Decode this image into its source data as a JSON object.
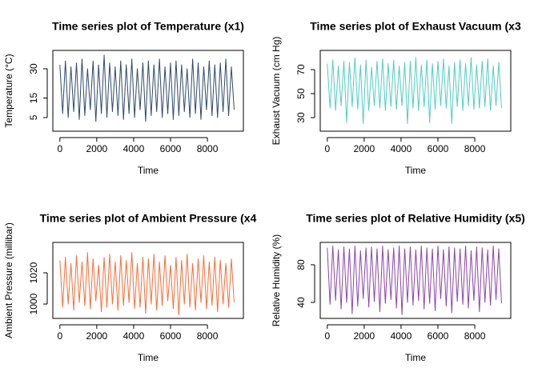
{
  "chart_data": [
    {
      "type": "line",
      "title": "Time series plot of Temperature (x1)",
      "xlabel": "Time",
      "ylabel": "Temperature (°C)",
      "color": "#2e4a6b",
      "x": [
        0,
        150,
        300,
        450,
        600,
        750,
        900,
        1050,
        1200,
        1350,
        1500,
        1650,
        1800,
        1950,
        2100,
        2250,
        2400,
        2550,
        2700,
        2850,
        3000,
        3150,
        3300,
        3450,
        3600,
        3750,
        3900,
        4050,
        4200,
        4350,
        4500,
        4650,
        4800,
        4950,
        5100,
        5250,
        5400,
        5550,
        5700,
        5850,
        6000,
        6150,
        6300,
        6450,
        6600,
        6750,
        6900,
        7050,
        7200,
        7350,
        7500,
        7650,
        7800,
        7950,
        8100,
        8250,
        8400,
        8550,
        8700,
        8850,
        9000,
        9150,
        9300,
        9450
      ],
      "values": [
        32,
        7,
        34,
        5,
        31,
        8,
        33,
        4,
        35,
        6,
        30,
        9,
        34,
        3,
        32,
        7,
        37,
        5,
        33,
        8,
        31,
        6,
        34,
        4,
        32,
        7,
        35,
        5,
        30,
        9,
        33,
        3,
        34,
        6,
        32,
        8,
        35,
        5,
        31,
        7,
        33,
        4,
        34,
        6,
        32,
        8,
        30,
        5,
        35,
        7,
        33,
        4,
        31,
        9,
        34,
        6,
        32,
        5,
        33,
        8,
        35,
        6,
        31,
        9
      ],
      "xlim": [
        -382,
        9951
      ],
      "xticks": [
        0,
        2000,
        4000,
        6000,
        8000
      ],
      "ylim": [
        -2,
        39.4
      ],
      "yticks": [
        5,
        15,
        30
      ]
    },
    {
      "type": "line",
      "title": "Time series plot of Exhaust Vacuum (x3",
      "xlabel": "Time",
      "ylabel": "Exhaust Vacuum (cm Hg)",
      "color": "#4ecdc4",
      "x": [
        0,
        150,
        300,
        450,
        600,
        750,
        900,
        1050,
        1200,
        1350,
        1500,
        1650,
        1800,
        1950,
        2100,
        2250,
        2400,
        2550,
        2700,
        2850,
        3000,
        3150,
        3300,
        3450,
        3600,
        3750,
        3900,
        4050,
        4200,
        4350,
        4500,
        4650,
        4800,
        4950,
        5100,
        5250,
        5400,
        5550,
        5700,
        5850,
        6000,
        6150,
        6300,
        6450,
        6600,
        6750,
        6900,
        7050,
        7200,
        7350,
        7500,
        7650,
        7800,
        7950,
        8100,
        8250,
        8400,
        8550,
        8700,
        8850,
        9000,
        9150,
        9300,
        9450
      ],
      "values": [
        75,
        38,
        78,
        36,
        73,
        40,
        77,
        26,
        76,
        39,
        80,
        37,
        74,
        25,
        78,
        36,
        72,
        40,
        77,
        38,
        79,
        36,
        75,
        39,
        78,
        37,
        73,
        40,
        76,
        25,
        77,
        38,
        80,
        36,
        74,
        39,
        78,
        26,
        75,
        37,
        77,
        40,
        79,
        38,
        73,
        25,
        76,
        39,
        78,
        36,
        75,
        40,
        80,
        37,
        74,
        38,
        77,
        39,
        79,
        36,
        73,
        40,
        76,
        38
      ],
      "xlim": [
        -382,
        9951
      ],
      "xticks": [
        0,
        2000,
        4000,
        6000,
        8000
      ],
      "ylim": [
        18.7,
        86
      ],
      "yticks": [
        30,
        50,
        70
      ]
    },
    {
      "type": "line",
      "title": "Time series plot of Ambient Pressure (x4",
      "xlabel": "Time",
      "ylabel": "Ambient Pressure (millibar)",
      "color": "#ff6b35",
      "x": [
        0,
        150,
        300,
        450,
        600,
        750,
        900,
        1050,
        1200,
        1350,
        1500,
        1650,
        1800,
        1950,
        2100,
        2250,
        2400,
        2550,
        2700,
        2850,
        3000,
        3150,
        3300,
        3450,
        3600,
        3750,
        3900,
        4050,
        4200,
        4350,
        4500,
        4650,
        4800,
        4950,
        5100,
        5250,
        5400,
        5550,
        5700,
        5850,
        6000,
        6150,
        6300,
        6450,
        6600,
        6750,
        6900,
        7050,
        7200,
        7350,
        7500,
        7650,
        7800,
        7950,
        8100,
        8250,
        8400,
        8550,
        8700,
        8850,
        9000,
        9150,
        9300,
        9450
      ],
      "values": [
        1028,
        998,
        1030,
        1000,
        1026,
        996,
        1031,
        1001,
        1027,
        999,
        1033,
        997,
        1029,
        1002,
        1025,
        995,
        1030,
        998,
        1032,
        1000,
        1027,
        996,
        1031,
        999,
        1028,
        1001,
        1033,
        997,
        1026,
        998,
        1030,
        994,
        1029,
        1000,
        1032,
        996,
        1027,
        999,
        1031,
        1002,
        1025,
        997,
        1030,
        993,
        1028,
        1000,
        1032,
        998,
        1026,
        996,
        1029,
        1001,
        1031,
        997,
        1027,
        999,
        1030,
        995,
        1028,
        1000,
        1026,
        998,
        1029,
        1001
      ],
      "xlim": [
        -382,
        9951
      ],
      "xticks": [
        0,
        2000,
        4000,
        6000,
        8000
      ],
      "ylim": [
        990.8,
        1039.5
      ],
      "yticks": [
        1000,
        1020
      ]
    },
    {
      "type": "line",
      "title": "Time series plot of Relative Humidity (x5)",
      "xlabel": "Time",
      "ylabel": "Relative Humidity (%)",
      "color": "#8e44ad",
      "x": [
        0,
        150,
        300,
        450,
        600,
        750,
        900,
        1050,
        1200,
        1350,
        1500,
        1650,
        1800,
        1950,
        2100,
        2250,
        2400,
        2550,
        2700,
        2850,
        3000,
        3150,
        3300,
        3450,
        3600,
        3750,
        3900,
        4050,
        4200,
        4350,
        4500,
        4650,
        4800,
        4950,
        5100,
        5250,
        5400,
        5550,
        5700,
        5850,
        6000,
        6150,
        6300,
        6450,
        6600,
        6750,
        6900,
        7050,
        7200,
        7350,
        7500,
        7650,
        7800,
        7950,
        8100,
        8250,
        8400,
        8550,
        8700,
        8850,
        9000,
        9150,
        9300,
        9450
      ],
      "values": [
        98,
        38,
        100,
        42,
        96,
        33,
        99,
        40,
        97,
        28,
        100,
        36,
        95,
        44,
        98,
        35,
        99,
        41,
        97,
        30,
        100,
        39,
        96,
        43,
        98,
        34,
        100,
        27,
        97,
        40,
        99,
        37,
        96,
        42,
        100,
        33,
        98,
        39,
        97,
        31,
        100,
        44,
        96,
        36,
        99,
        29,
        98,
        41,
        97,
        38,
        100,
        34,
        95,
        42,
        99,
        30,
        98,
        40,
        96,
        37,
        100,
        43,
        97,
        39
      ],
      "xlim": [
        -382,
        9951
      ],
      "xticks": [
        0,
        2000,
        4000,
        6000,
        8000
      ],
      "ylim": [
        23,
        103.8
      ],
      "yticks": [
        40,
        80
      ]
    }
  ]
}
